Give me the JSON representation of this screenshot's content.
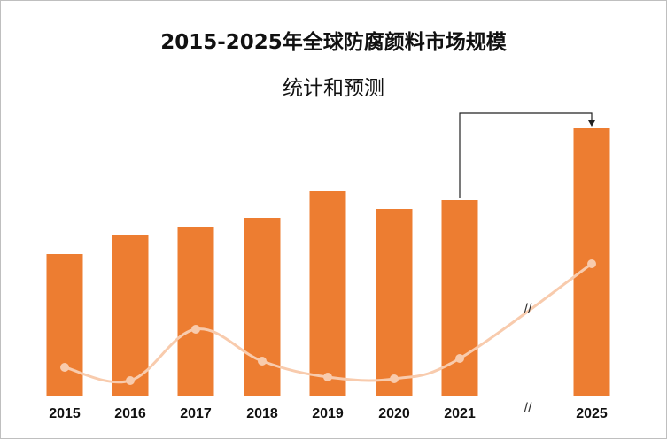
{
  "chart_data": {
    "type": "bar",
    "title_line1": "2015-2025年全球防腐颜料市场规模",
    "title_line2": "统计和预测",
    "categories": [
      "2015",
      "2016",
      "2017",
      "2018",
      "2019",
      "2020",
      "2021",
      "2025"
    ],
    "values": [
      160,
      181,
      191,
      201,
      231,
      211,
      221,
      302
    ],
    "line_values": [
      33,
      18,
      76,
      40,
      22,
      20,
      43,
      150
    ],
    "axis_break_label": "//",
    "bar_color": "#ed7d31",
    "line_color": "#f8cbad",
    "xlabel": "",
    "ylabel": "",
    "grid": false,
    "legend": "none"
  }
}
